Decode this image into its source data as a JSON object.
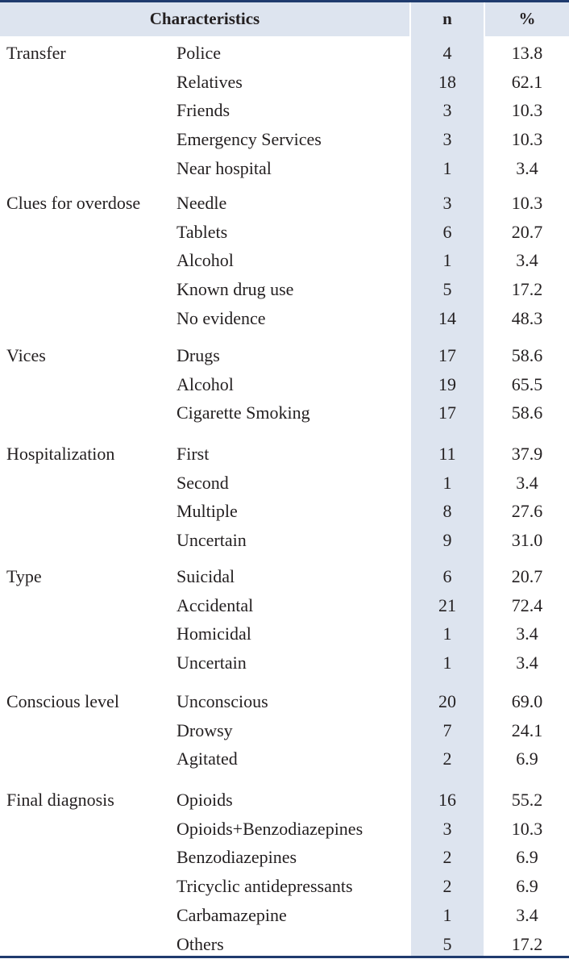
{
  "header": {
    "characteristics": "Characteristics",
    "n": "n",
    "pct": "%"
  },
  "groups": [
    {
      "label": "Transfer",
      "rows": [
        {
          "sub": "Police",
          "n": "4",
          "pct": "13.8"
        },
        {
          "sub": "Relatives",
          "n": "18",
          "pct": "62.1"
        },
        {
          "sub": "Friends",
          "n": "3",
          "pct": "10.3"
        },
        {
          "sub": "Emergency Services",
          "n": "3",
          "pct": "10.3"
        },
        {
          "sub": "Near hospital",
          "n": "1",
          "pct": "3.4"
        }
      ]
    },
    {
      "label": "Clues for overdose",
      "rows": [
        {
          "sub": "Needle",
          "n": "3",
          "pct": "10.3"
        },
        {
          "sub": "Tablets",
          "n": "6",
          "pct": "20.7"
        },
        {
          "sub": "Alcohol",
          "n": "1",
          "pct": "3.4"
        },
        {
          "sub": "Known drug use",
          "n": "5",
          "pct": "17.2"
        },
        {
          "sub": "No evidence",
          "n": "14",
          "pct": "48.3"
        }
      ]
    },
    {
      "label": "Vices",
      "rows": [
        {
          "sub": "Drugs",
          "n": "17",
          "pct": "58.6"
        },
        {
          "sub": "Alcohol",
          "n": "19",
          "pct": "65.5"
        },
        {
          "sub": "Cigarette Smoking",
          "n": "17",
          "pct": "58.6"
        }
      ]
    },
    {
      "label": "Hospitalization",
      "rows": [
        {
          "sub": "First",
          "n": "11",
          "pct": "37.9"
        },
        {
          "sub": "Second",
          "n": "1",
          "pct": "3.4"
        },
        {
          "sub": "Multiple",
          "n": "8",
          "pct": "27.6"
        },
        {
          "sub": "Uncertain",
          "n": "9",
          "pct": "31.0"
        }
      ]
    },
    {
      "label": "Type",
      "rows": [
        {
          "sub": "Suicidal",
          "n": "6",
          "pct": "20.7"
        },
        {
          "sub": "Accidental",
          "n": "21",
          "pct": "72.4"
        },
        {
          "sub": "Homicidal",
          "n": "1",
          "pct": "3.4"
        },
        {
          "sub": "Uncertain",
          "n": "1",
          "pct": "3.4"
        }
      ]
    },
    {
      "label": "Conscious level",
      "rows": [
        {
          "sub": "Unconscious",
          "n": "20",
          "pct": "69.0"
        },
        {
          "sub": "Drowsy",
          "n": "7",
          "pct": "24.1"
        },
        {
          "sub": "Agitated",
          "n": "2",
          "pct": "6.9"
        }
      ]
    },
    {
      "label": "Final diagnosis",
      "rows": [
        {
          "sub": "Opioids",
          "n": "16",
          "pct": "55.2"
        },
        {
          "sub": "Opioids+Benzodiazepines",
          "n": "3",
          "pct": "10.3"
        },
        {
          "sub": "Benzodiazepines",
          "n": "2",
          "pct": "6.9"
        },
        {
          "sub": "Tricyclic antidepressants",
          "n": "2",
          "pct": "6.9"
        },
        {
          "sub": "Carbamazepine",
          "n": "1",
          "pct": "3.4"
        },
        {
          "sub": "Others",
          "n": "5",
          "pct": "17.2"
        }
      ]
    }
  ]
}
